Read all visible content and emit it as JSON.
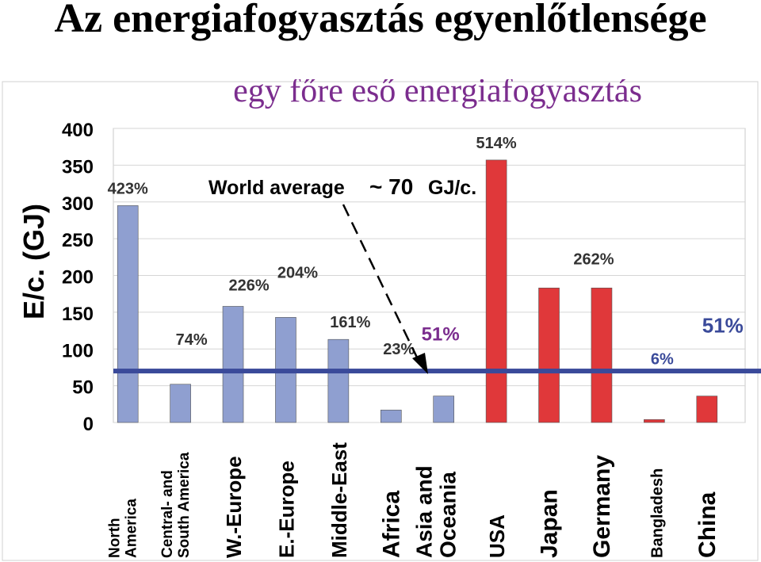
{
  "page": {
    "title": "Az energiafogyasztás egyenlőtlensége"
  },
  "chart_data": {
    "type": "bar",
    "title": "egy főre eső energiafogyasztás",
    "ylabel": "E/c. (GJ)",
    "xlabel": "",
    "ylim": [
      0,
      400
    ],
    "yticks": [
      "0",
      "50",
      "100",
      "150",
      "200",
      "250",
      "300",
      "350",
      "400"
    ],
    "categories": [
      [
        "North",
        "America"
      ],
      [
        "Central- and",
        "South America"
      ],
      [
        "W.-Europe"
      ],
      [
        "E.-Europe"
      ],
      [
        "Middle-East"
      ],
      [
        "Africa"
      ],
      [
        "Asia and",
        "Oceania"
      ],
      [
        "USA"
      ],
      [
        "Japan"
      ],
      [
        "Germany"
      ],
      [
        "Bangladesh"
      ],
      [
        "China"
      ]
    ],
    "values": [
      295,
      52,
      158,
      143,
      113,
      17,
      36,
      357,
      183,
      183,
      4,
      36
    ],
    "bar_colors": [
      "#8f9fd0",
      "#8f9fd0",
      "#8f9fd0",
      "#8f9fd0",
      "#8f9fd0",
      "#8f9fd0",
      "#8f9fd0",
      "#e0383a",
      "#e0383a",
      "#e0383a",
      "#e0383a",
      "#e0383a"
    ],
    "percent_labels": [
      "423%",
      "74%",
      "226%",
      "204%",
      "161%",
      "23%",
      "",
      "514%",
      "",
      "262%",
      "6%",
      "51%"
    ],
    "asia_label": "51%",
    "world_average": {
      "value": 70,
      "label": "World average",
      "value_text": "~ 70",
      "unit": "GJ/c."
    },
    "colors": {
      "average_line": "#3a4a9a",
      "purple_label": "#7b2d8e",
      "blue_label": "#3a4a9a"
    }
  }
}
